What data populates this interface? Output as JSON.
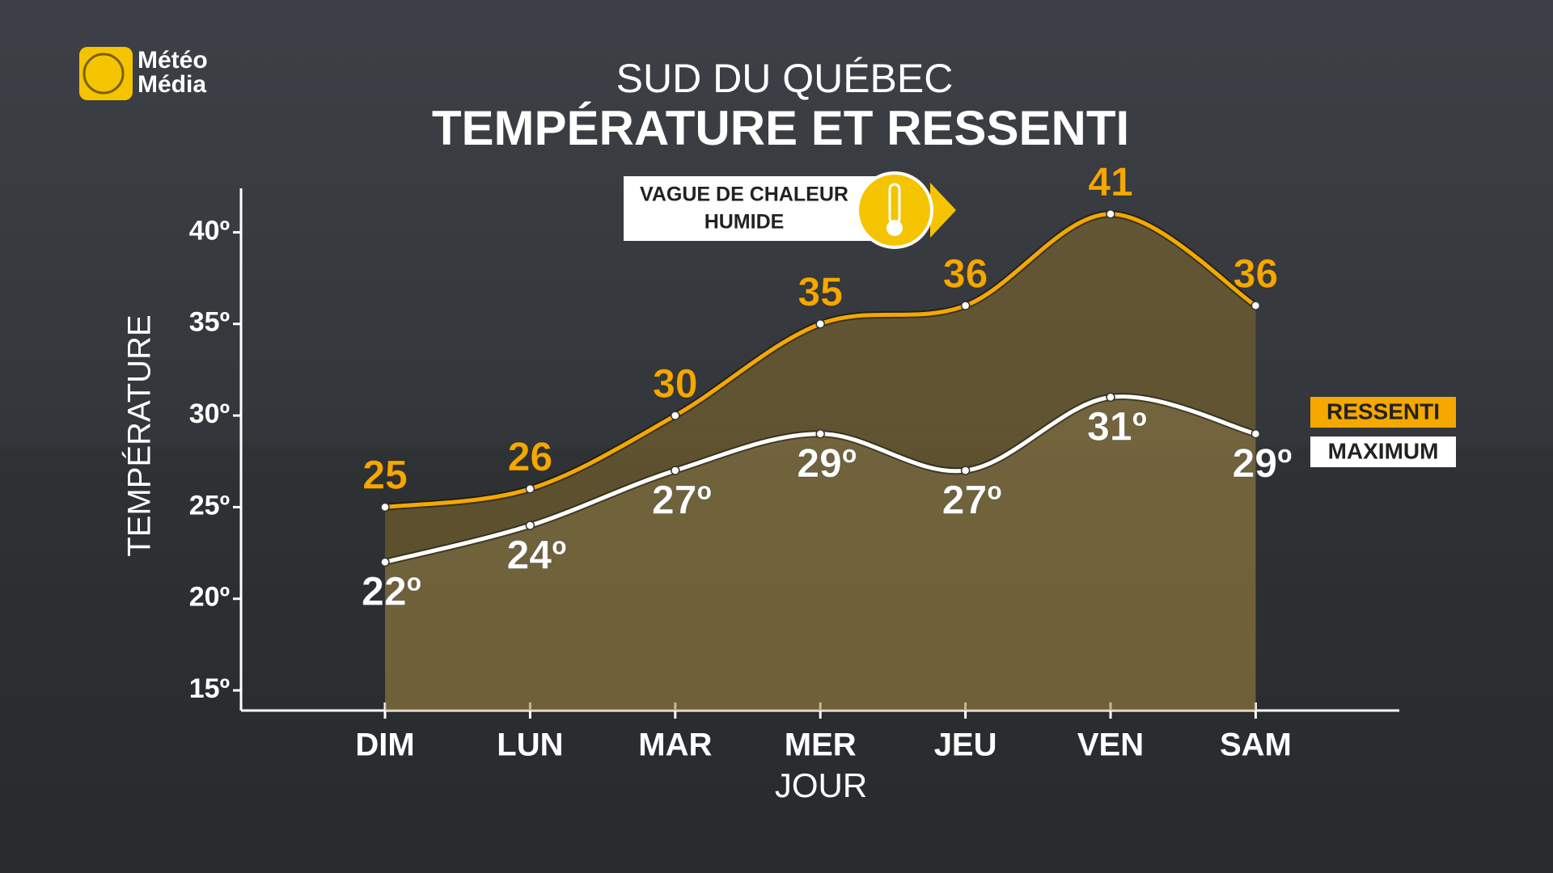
{
  "logo": "Météo\nMédia",
  "chart_data": {
    "type": "line",
    "subtitle": "SUD DU QUÉBEC",
    "title": "TEMPÉRATURE ET RESSENTI",
    "annotation": [
      "VAGUE DE CHALEUR",
      "HUMIDE"
    ],
    "ylabel": "TEMPÉRATURE",
    "xlabel": "JOUR",
    "categories": [
      "DIM",
      "LUN",
      "MAR",
      "MER",
      "JEU",
      "VEN",
      "SAM"
    ],
    "series": [
      {
        "name": "RESSENTI",
        "color": "#f5a800",
        "values": [
          25,
          26,
          30,
          35,
          36,
          41,
          36
        ]
      },
      {
        "name": "MAXIMUM",
        "color": "#ffffff",
        "values": [
          22,
          24,
          27,
          29,
          27,
          31,
          29
        ],
        "value_labels": [
          "22º",
          "24º",
          "27º",
          "29º",
          "27º",
          "31º",
          "29º"
        ]
      }
    ],
    "ylim": [
      13.9,
      42.4
    ],
    "yticks": [
      {
        "value": 15,
        "label": "15º"
      },
      {
        "value": 20,
        "label": "20º"
      },
      {
        "value": 25,
        "label": "25º"
      },
      {
        "value": 30,
        "label": "30º"
      },
      {
        "value": 35,
        "label": "35º"
      },
      {
        "value": 40,
        "label": "40º"
      }
    ],
    "grid": false,
    "legend": "right"
  }
}
